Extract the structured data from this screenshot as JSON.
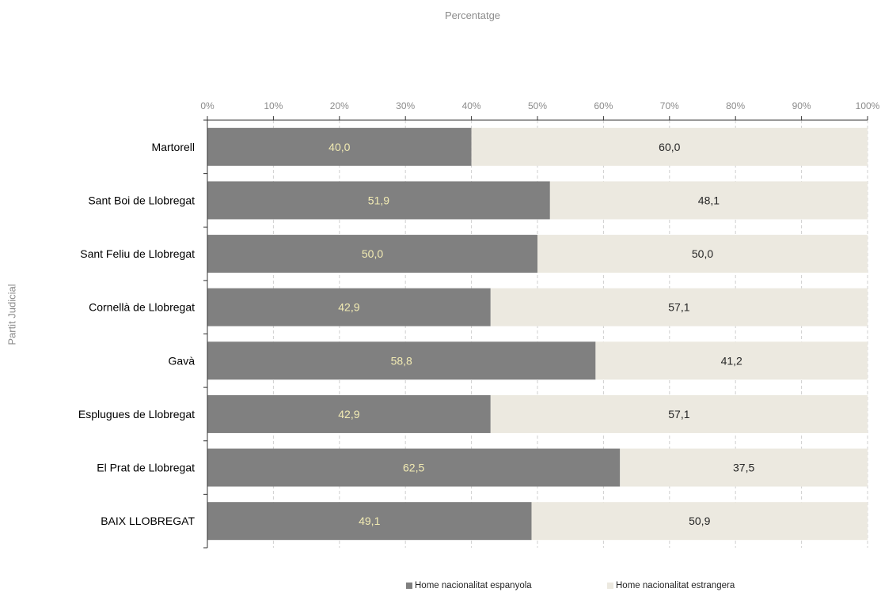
{
  "chart_data": {
    "type": "bar",
    "orientation": "horizontal",
    "stacked": "100%",
    "title": "Percentatge",
    "xlabel": "Percentatge",
    "ylabel": "Partit Judicial",
    "xlim": [
      0,
      100
    ],
    "x_ticks": [
      "0%",
      "10%",
      "20%",
      "30%",
      "40%",
      "50%",
      "60%",
      "70%",
      "80%",
      "90%",
      "100%"
    ],
    "categories": [
      "Martorell",
      "Sant Boi de Llobregat",
      "Sant Feliu de Llobregat",
      "Cornellà de Llobregat",
      "Gavà",
      "Esplugues de Llobregat",
      "El Prat de Llobregat",
      "BAIX LLOBREGAT"
    ],
    "series": [
      {
        "name": "Home nacionalitat espanyola",
        "values": [
          40.0,
          51.9,
          50.0,
          42.9,
          58.8,
          42.9,
          62.5,
          49.1
        ],
        "labels": [
          "40,0",
          "51,9",
          "50,0",
          "42,9",
          "58,8",
          "42,9",
          "62,5",
          "49,1"
        ],
        "color": "#808080",
        "label_color": "#f2ebb3"
      },
      {
        "name": "Home nacionalitat estrangera",
        "values": [
          60.0,
          48.1,
          50.0,
          57.1,
          41.2,
          57.1,
          37.5,
          50.9
        ],
        "labels": [
          "60,0",
          "48,1",
          "50,0",
          "57,1",
          "41,2",
          "57,1",
          "37,5",
          "50,9"
        ],
        "color": "#ece9e0",
        "label_color": "#262626"
      }
    ],
    "grid": true,
    "legend_position": "bottom"
  }
}
